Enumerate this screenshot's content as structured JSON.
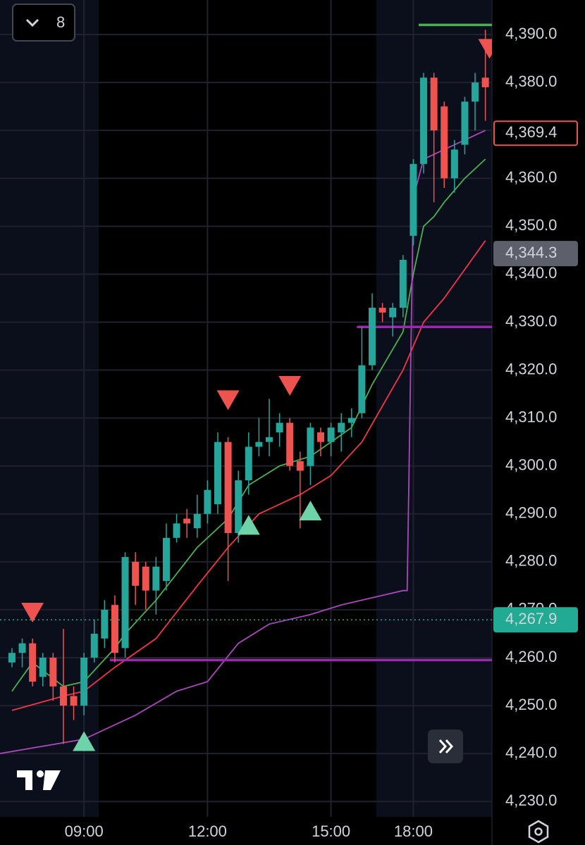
{
  "toolbar": {
    "count": 8
  },
  "chart_data": {
    "type": "candlestick",
    "xlim": [
      -1.16,
      46.64
    ],
    "ylim": [
      4226.8,
      4397.2
    ],
    "xticks": [
      {
        "value": 7,
        "label": "09:00"
      },
      {
        "value": 19,
        "label": "12:00"
      },
      {
        "value": 31,
        "label": "15:00"
      },
      {
        "value": 39,
        "label": "18:00"
      }
    ],
    "yticks": [
      {
        "value": 4230,
        "label": "4,230.0"
      },
      {
        "value": 4240,
        "label": "4,240.0"
      },
      {
        "value": 4250,
        "label": "4,250.0"
      },
      {
        "value": 4260,
        "label": "4,260.0"
      },
      {
        "value": 4270,
        "label": "4,270.0"
      },
      {
        "value": 4280,
        "label": "4,280.0"
      },
      {
        "value": 4290,
        "label": "4,290.0"
      },
      {
        "value": 4300,
        "label": "4,300.0"
      },
      {
        "value": 4310,
        "label": "4,310.0"
      },
      {
        "value": 4320,
        "label": "4,320.0"
      },
      {
        "value": 4330,
        "label": "4,330.0"
      },
      {
        "value": 4340,
        "label": "4,340.0"
      },
      {
        "value": 4350,
        "label": "4,350.0"
      },
      {
        "value": 4360,
        "label": "4,360.0"
      },
      {
        "value": 4370,
        "label": "4,370.0"
      },
      {
        "value": 4380,
        "label": "4,380.0"
      },
      {
        "value": 4390,
        "label": "4,390.0"
      }
    ],
    "grid": true,
    "up_color": "#26a69a",
    "down_color": "#ef5350",
    "ohlc": [
      [
        4259,
        4262,
        4258,
        4261
      ],
      [
        4261,
        4264,
        4258,
        4263
      ],
      [
        4263,
        4264,
        4254,
        4255
      ],
      [
        4256,
        4261,
        4254,
        4260
      ],
      [
        4260,
        4261,
        4251,
        4254
      ],
      [
        4254,
        4266,
        4242,
        4250
      ],
      [
        4252,
        4254,
        4247,
        4250
      ],
      [
        4250,
        4261,
        4248,
        4260
      ],
      [
        4260,
        4268,
        4259,
        4265
      ],
      [
        4264,
        4272,
        4262,
        4270
      ],
      [
        4271,
        4273,
        4259,
        4261
      ],
      [
        4262,
        4282,
        4260,
        4281
      ],
      [
        4280,
        4282,
        4271,
        4275
      ],
      [
        4279,
        4280,
        4270,
        4274
      ],
      [
        4274,
        4281,
        4269,
        4279
      ],
      [
        4276,
        4288,
        4274,
        4285
      ],
      [
        4285,
        4290,
        4284,
        4288
      ],
      [
        4289,
        4291,
        4285,
        4288
      ],
      [
        4287,
        4294,
        4285,
        4290
      ],
      [
        4290,
        4297,
        4288,
        4295
      ],
      [
        4292,
        4307,
        4290,
        4305
      ],
      [
        4305,
        4306,
        4276,
        4286
      ],
      [
        4286,
        4299,
        4284,
        4297
      ],
      [
        4297,
        4307,
        4294,
        4304
      ],
      [
        4304,
        4310,
        4302,
        4305
      ],
      [
        4305,
        4314,
        4302,
        4306
      ],
      [
        4307,
        4311,
        4304,
        4309
      ],
      [
        4309,
        4310,
        4299,
        4300
      ],
      [
        4301,
        4303,
        4287,
        4299
      ],
      [
        4300,
        4309,
        4296,
        4308
      ],
      [
        4307,
        4308,
        4302,
        4305
      ],
      [
        4305,
        4309,
        4302,
        4308
      ],
      [
        4307,
        4311,
        4303,
        4309
      ],
      [
        4309,
        4312,
        4306,
        4310
      ],
      [
        4311,
        4329,
        4310,
        4321
      ],
      [
        4321,
        4336,
        4320,
        4333
      ],
      [
        4333,
        4334,
        4330,
        4332
      ],
      [
        4331,
        4334,
        4327,
        4333
      ],
      [
        4333,
        4344,
        4331,
        4343
      ],
      [
        4348,
        4364,
        4346,
        4363
      ],
      [
        4363,
        4382,
        4361,
        4381
      ],
      [
        4381,
        4382,
        4355,
        4370
      ],
      [
        4375,
        4376,
        4358,
        4360
      ],
      [
        4360,
        4368,
        4357,
        4366
      ],
      [
        4367,
        4377,
        4365,
        4376
      ],
      [
        4376,
        4382,
        4370,
        4380
      ],
      [
        4381,
        4391,
        4372,
        4379
      ]
    ],
    "lines": [
      {
        "color": "#4caf50",
        "x": [
          0,
          2,
          5,
          7,
          10,
          11,
          14,
          18,
          21,
          23,
          26,
          29,
          31,
          33,
          35,
          38,
          39,
          40,
          41,
          42,
          44,
          46
        ],
        "values": [
          4253,
          4259,
          4254,
          4255,
          4262,
          4265,
          4272,
          4283,
          4289,
          4296,
          4300,
          4302,
          4305,
          4308,
          4317,
          4328,
          4340,
          4350,
          4352,
          4355,
          4360,
          4364
        ]
      },
      {
        "color": "#f23645",
        "x": [
          0,
          5,
          7,
          10,
          14,
          18,
          21,
          24,
          28,
          31,
          34,
          38,
          40,
          42,
          44,
          46
        ],
        "values": [
          4249,
          4252,
          4253,
          4258,
          4264,
          4275,
          4283,
          4290,
          4294,
          4298,
          4305,
          4320,
          4330,
          4335,
          4341,
          4347
        ]
      },
      {
        "color": "#ab47bc",
        "x": [
          -1.16,
          7,
          12,
          16,
          19,
          22,
          25,
          29,
          32,
          34,
          36,
          38,
          38.4,
          39,
          40,
          44,
          46
        ],
        "values": [
          4240,
          4243,
          4248,
          4253,
          4255,
          4263,
          4267,
          4269,
          4271,
          4272,
          4273,
          4274,
          4274,
          4356,
          4364,
          4368,
          4370
        ]
      }
    ],
    "levels": [
      {
        "color": "#9c27b0",
        "value": 4329,
        "from": 34
      },
      {
        "color": "#9c27b0",
        "value": 4259.5,
        "from": 10
      },
      {
        "color": "#4caf50",
        "value": 4392,
        "from": 40
      }
    ],
    "signals_down": [
      {
        "x": 2,
        "value": 4269.4
      },
      {
        "x": 21,
        "value": 4313.7
      },
      {
        "x": 27,
        "value": 4316.7
      },
      {
        "x": 46.4,
        "value": 4387
      }
    ],
    "signals_up": [
      {
        "x": 7,
        "value": 4242.6
      },
      {
        "x": 23,
        "value": 4287.7
      },
      {
        "x": 29,
        "value": 4290.7
      }
    ],
    "price_labels": [
      {
        "value": 4369.4,
        "label": "4,369.4",
        "color": "#ef5350",
        "style": "outline"
      },
      {
        "value": 4344.3,
        "label": "4,344.3",
        "color": "#5d606b",
        "style": "fill"
      },
      {
        "value": 4267.9,
        "label": "4,267.9",
        "color": "#22ab94",
        "style": "fill"
      }
    ]
  }
}
